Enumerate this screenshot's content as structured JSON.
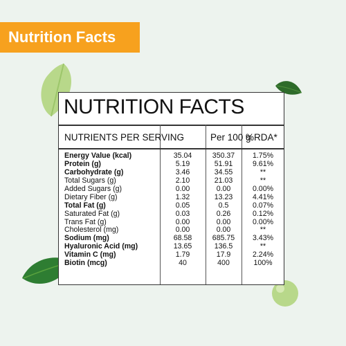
{
  "badge": {
    "label": "Nutrition Facts"
  },
  "colors": {
    "badge": "#f7a11e",
    "background": "#edf3ee",
    "leaf": "#2e7d32",
    "pea": "#b8d88a"
  },
  "panel": {
    "title": "NUTRITION FACTS",
    "headers": {
      "nutrients": "NUTRIENTS PER SERVING",
      "per100": "Per 100 g",
      "rda": "%RDA*"
    },
    "rows": [
      {
        "name": "Energy Value (kcal)",
        "serving": "35.04",
        "per100": "350.37",
        "rda": "1.75%",
        "bold": true
      },
      {
        "name": "Protein (g)",
        "serving": "5.19",
        "per100": "51.91",
        "rda": "9.61%",
        "bold": true
      },
      {
        "name": "Carbohydrate (g)",
        "serving": "3.46",
        "per100": "34.55",
        "rda": "**",
        "bold": true
      },
      {
        "name": "Total Sugars (g)",
        "serving": "2.10",
        "per100": "21.03",
        "rda": "**",
        "bold": false
      },
      {
        "name": "Added Sugars (g)",
        "serving": "0.00",
        "per100": "0.00",
        "rda": "0.00%",
        "bold": false
      },
      {
        "name": "Dietary Fiber (g)",
        "serving": "1.32",
        "per100": "13.23",
        "rda": "4.41%",
        "bold": false
      },
      {
        "name": "Total Fat (g)",
        "serving": "0.05",
        "per100": "0.5",
        "rda": "0.07%",
        "bold": true
      },
      {
        "name": "Saturated Fat (g)",
        "serving": "0.03",
        "per100": "0.26",
        "rda": "0.12%",
        "bold": false
      },
      {
        "name": "Trans Fat (g)",
        "serving": "0.00",
        "per100": "0.00",
        "rda": "0.00%",
        "bold": false
      },
      {
        "name": "Cholesterol (mg)",
        "serving": "0.00",
        "per100": "0.00",
        "rda": "**",
        "bold": false
      },
      {
        "name": "Sodium (mg)",
        "serving": "68.58",
        "per100": "685.75",
        "rda": "3.43%",
        "bold": true
      },
      {
        "name": "Hyaluronic Acid (mg)",
        "serving": "13.65",
        "per100": "136.5",
        "rda": "**",
        "bold": true
      },
      {
        "name": "Vitamin C (mg)",
        "serving": "1.79",
        "per100": "17.9",
        "rda": "2.24%",
        "bold": true
      },
      {
        "name": "Biotin (mcg)",
        "serving": "40",
        "per100": "400",
        "rda": "100%",
        "bold": true
      }
    ]
  }
}
